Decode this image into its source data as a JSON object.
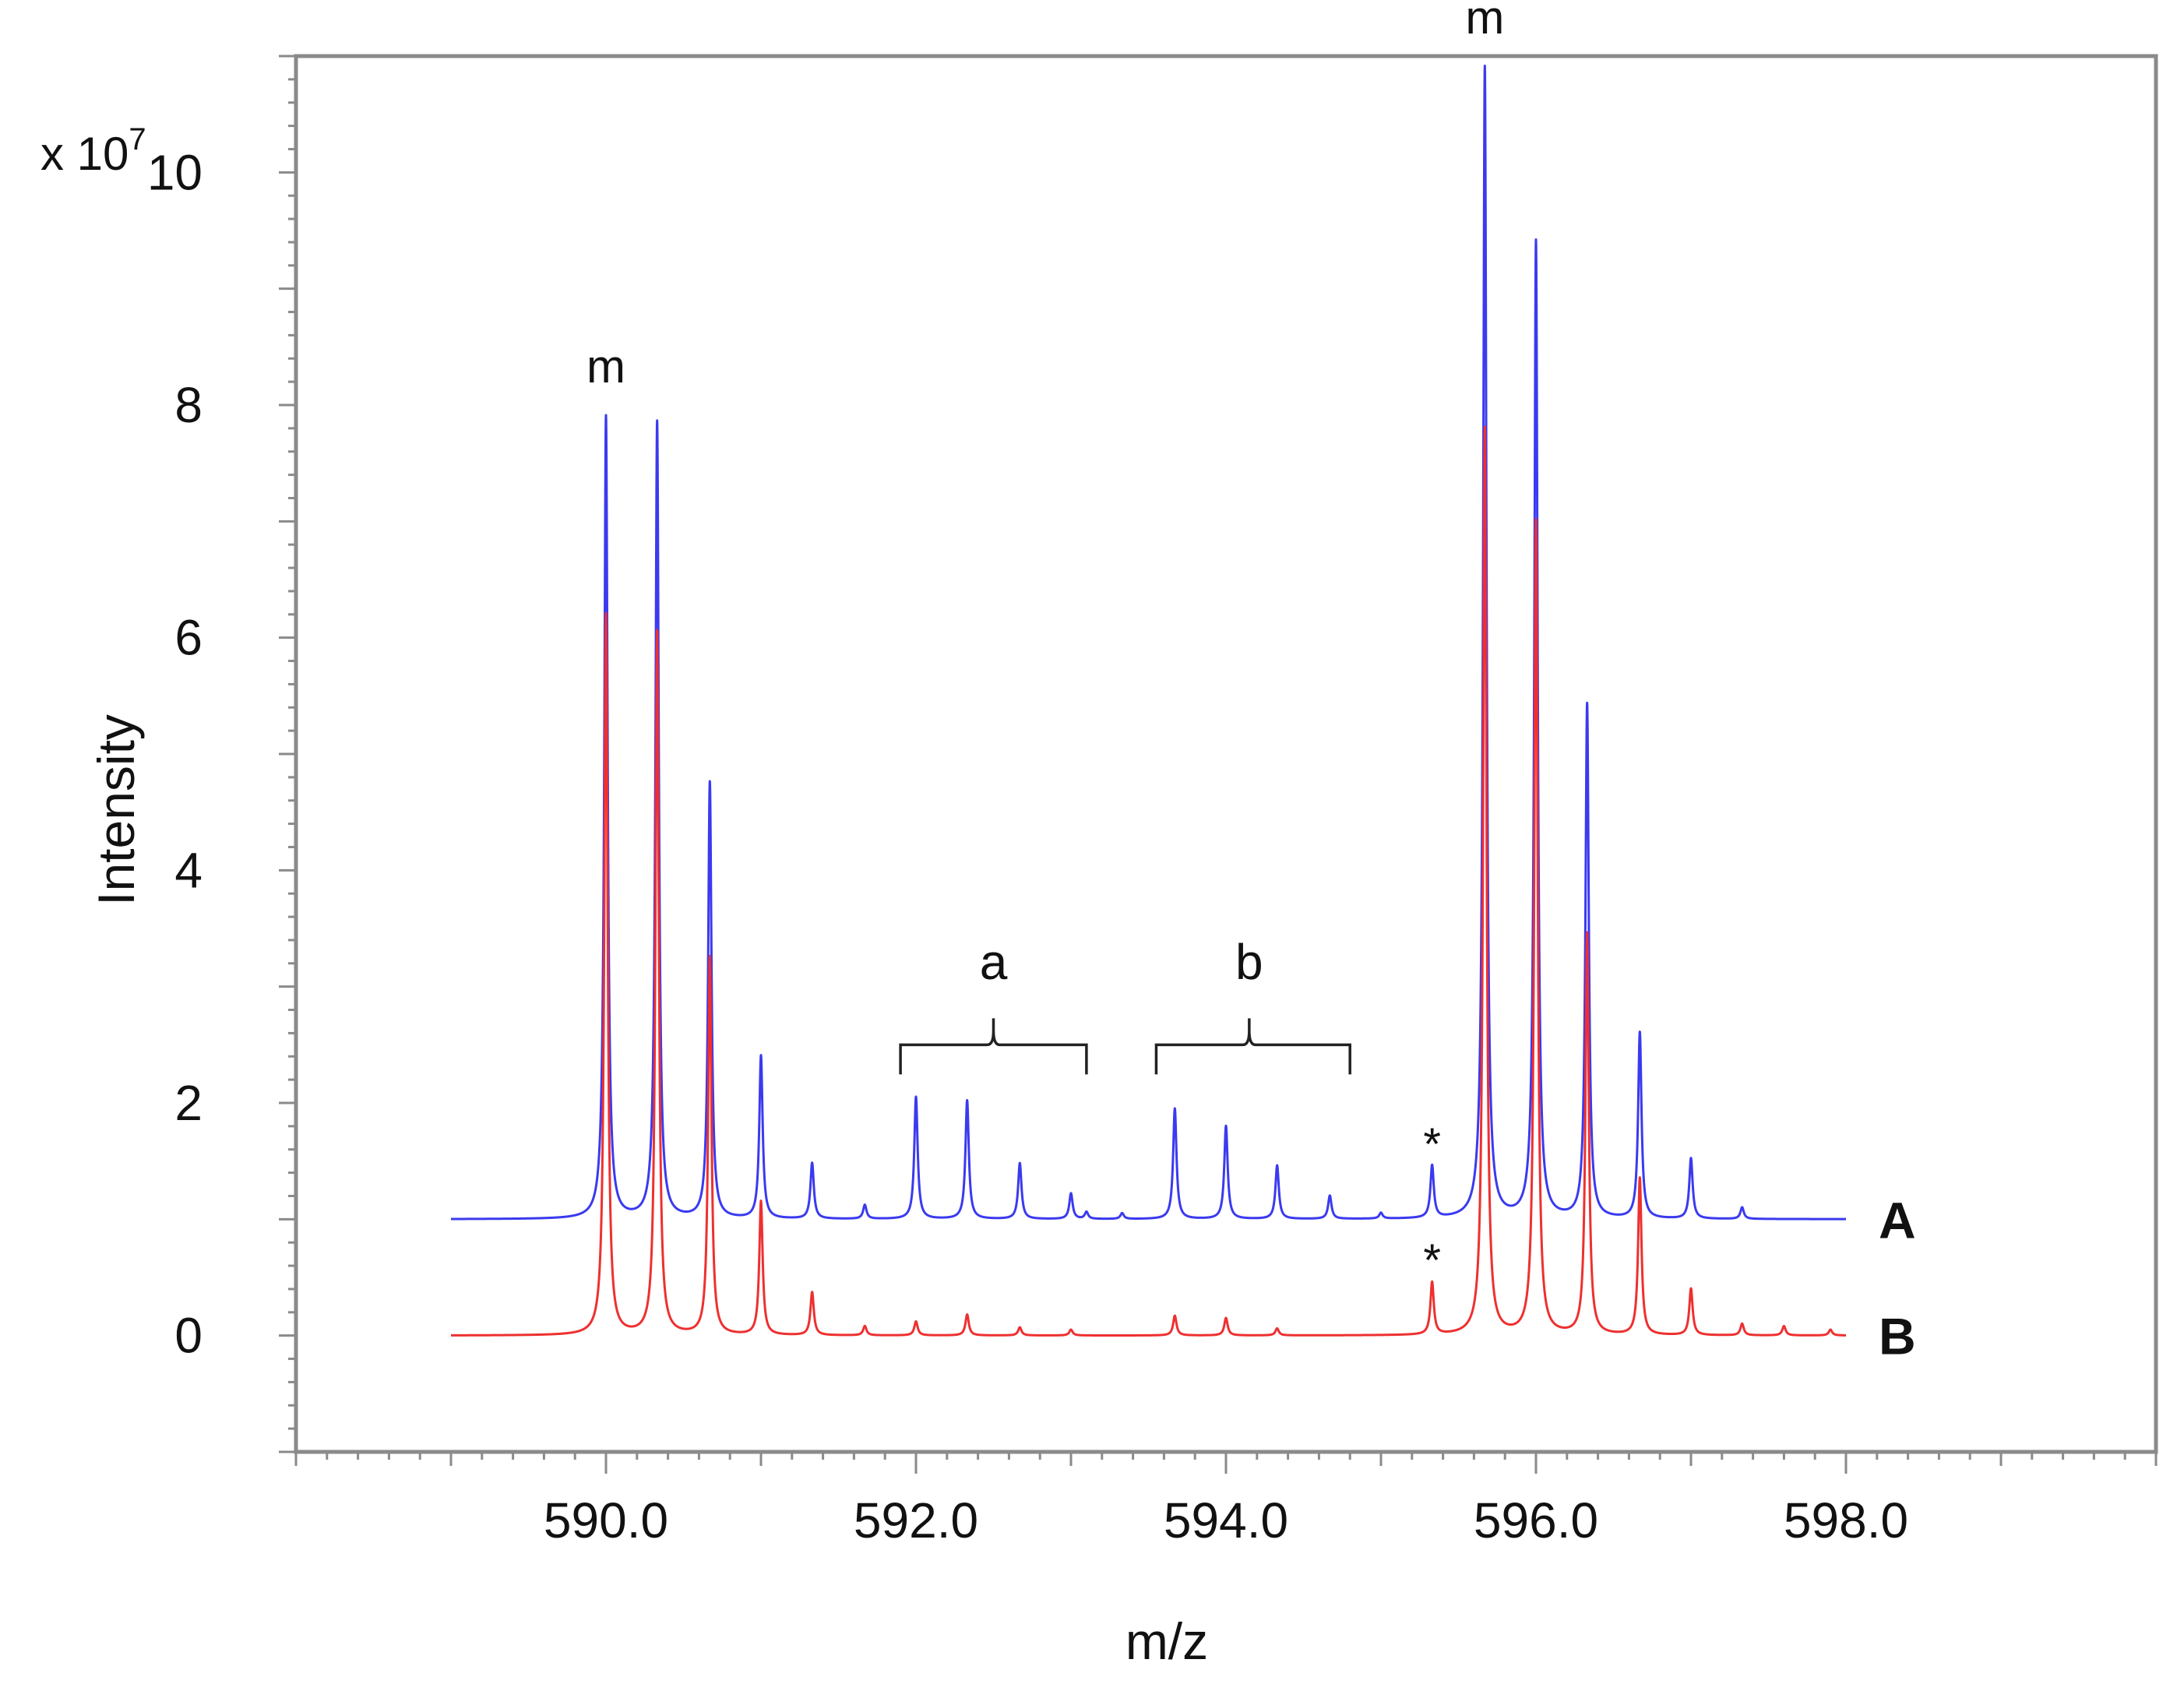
{
  "chart_data": {
    "type": "line",
    "title": "",
    "xlabel": "m/z",
    "ylabel": "Intensity",
    "y_exponent_label": "x 10",
    "y_exponent_power": "7",
    "xlim": [
      588.0,
      600.0
    ],
    "ylim": [
      -1.0,
      11.0
    ],
    "x_ticks": [
      590.0,
      592.0,
      594.0,
      596.0,
      598.0
    ],
    "x_tick_labels": [
      "590.0",
      "592.0",
      "594.0",
      "596.0",
      "598.0"
    ],
    "y_ticks": [
      0,
      2,
      4,
      6,
      8,
      10
    ],
    "y_tick_labels": [
      "0",
      "2",
      "4",
      "6",
      "8",
      "10"
    ],
    "x_range": [
      589.0,
      598.0
    ],
    "grid": false,
    "series": [
      {
        "name": "A",
        "color": "#3a3af0",
        "baseline": 1.0,
        "peaks": [
          {
            "mz": 590.0,
            "intensity": 7.9
          },
          {
            "mz": 590.33,
            "intensity": 7.85
          },
          {
            "mz": 590.67,
            "intensity": 4.75
          },
          {
            "mz": 591.0,
            "intensity": 2.4
          },
          {
            "mz": 591.33,
            "intensity": 1.48
          },
          {
            "mz": 591.67,
            "intensity": 1.12
          },
          {
            "mz": 592.0,
            "intensity": 2.05
          },
          {
            "mz": 592.33,
            "intensity": 2.02
          },
          {
            "mz": 592.67,
            "intensity": 1.48
          },
          {
            "mz": 593.0,
            "intensity": 1.22
          },
          {
            "mz": 593.1,
            "intensity": 1.06
          },
          {
            "mz": 593.33,
            "intensity": 1.05
          },
          {
            "mz": 593.67,
            "intensity": 1.95
          },
          {
            "mz": 594.0,
            "intensity": 1.8
          },
          {
            "mz": 594.33,
            "intensity": 1.46
          },
          {
            "mz": 594.67,
            "intensity": 1.2
          },
          {
            "mz": 595.0,
            "intensity": 1.05
          },
          {
            "mz": 595.33,
            "intensity": 1.45
          },
          {
            "mz": 595.67,
            "intensity": 10.9
          },
          {
            "mz": 596.0,
            "intensity": 9.4
          },
          {
            "mz": 596.33,
            "intensity": 5.42
          },
          {
            "mz": 596.67,
            "intensity": 2.6
          },
          {
            "mz": 597.0,
            "intensity": 1.52
          },
          {
            "mz": 597.33,
            "intensity": 1.1
          }
        ]
      },
      {
        "name": "B",
        "color": "#ee3030",
        "baseline": 0.0,
        "peaks": [
          {
            "mz": 590.0,
            "intensity": 6.2
          },
          {
            "mz": 590.33,
            "intensity": 6.05
          },
          {
            "mz": 590.67,
            "intensity": 3.25
          },
          {
            "mz": 591.0,
            "intensity": 1.15
          },
          {
            "mz": 591.33,
            "intensity": 0.37
          },
          {
            "mz": 591.67,
            "intensity": 0.08
          },
          {
            "mz": 592.0,
            "intensity": 0.12
          },
          {
            "mz": 592.33,
            "intensity": 0.18
          },
          {
            "mz": 592.67,
            "intensity": 0.07
          },
          {
            "mz": 593.0,
            "intensity": 0.05
          },
          {
            "mz": 593.67,
            "intensity": 0.17
          },
          {
            "mz": 594.0,
            "intensity": 0.15
          },
          {
            "mz": 594.33,
            "intensity": 0.06
          },
          {
            "mz": 595.33,
            "intensity": 0.45
          },
          {
            "mz": 595.67,
            "intensity": 7.8
          },
          {
            "mz": 596.0,
            "intensity": 7.0
          },
          {
            "mz": 596.33,
            "intensity": 3.45
          },
          {
            "mz": 596.67,
            "intensity": 1.35
          },
          {
            "mz": 597.0,
            "intensity": 0.4
          },
          {
            "mz": 597.33,
            "intensity": 0.1
          },
          {
            "mz": 597.6,
            "intensity": 0.08
          },
          {
            "mz": 597.9,
            "intensity": 0.05
          }
        ]
      }
    ],
    "annotations": [
      {
        "text": "m",
        "mz": 590.0,
        "y": 8.3,
        "kind": "label"
      },
      {
        "text": "m",
        "mz": 595.67,
        "y": 11.3,
        "kind": "label"
      },
      {
        "text": "a",
        "mz": 592.5,
        "y": 3.2,
        "kind": "bracket",
        "x_start": 591.9,
        "x_end": 593.1,
        "bracket_y": 2.5
      },
      {
        "text": "b",
        "mz": 594.15,
        "y": 3.2,
        "kind": "bracket",
        "x_start": 593.55,
        "x_end": 594.8,
        "bracket_y": 2.5
      },
      {
        "text": "*",
        "mz": 595.33,
        "y": 1.7,
        "kind": "label"
      },
      {
        "text": "*",
        "mz": 595.33,
        "y": 0.7,
        "kind": "label"
      }
    ]
  }
}
